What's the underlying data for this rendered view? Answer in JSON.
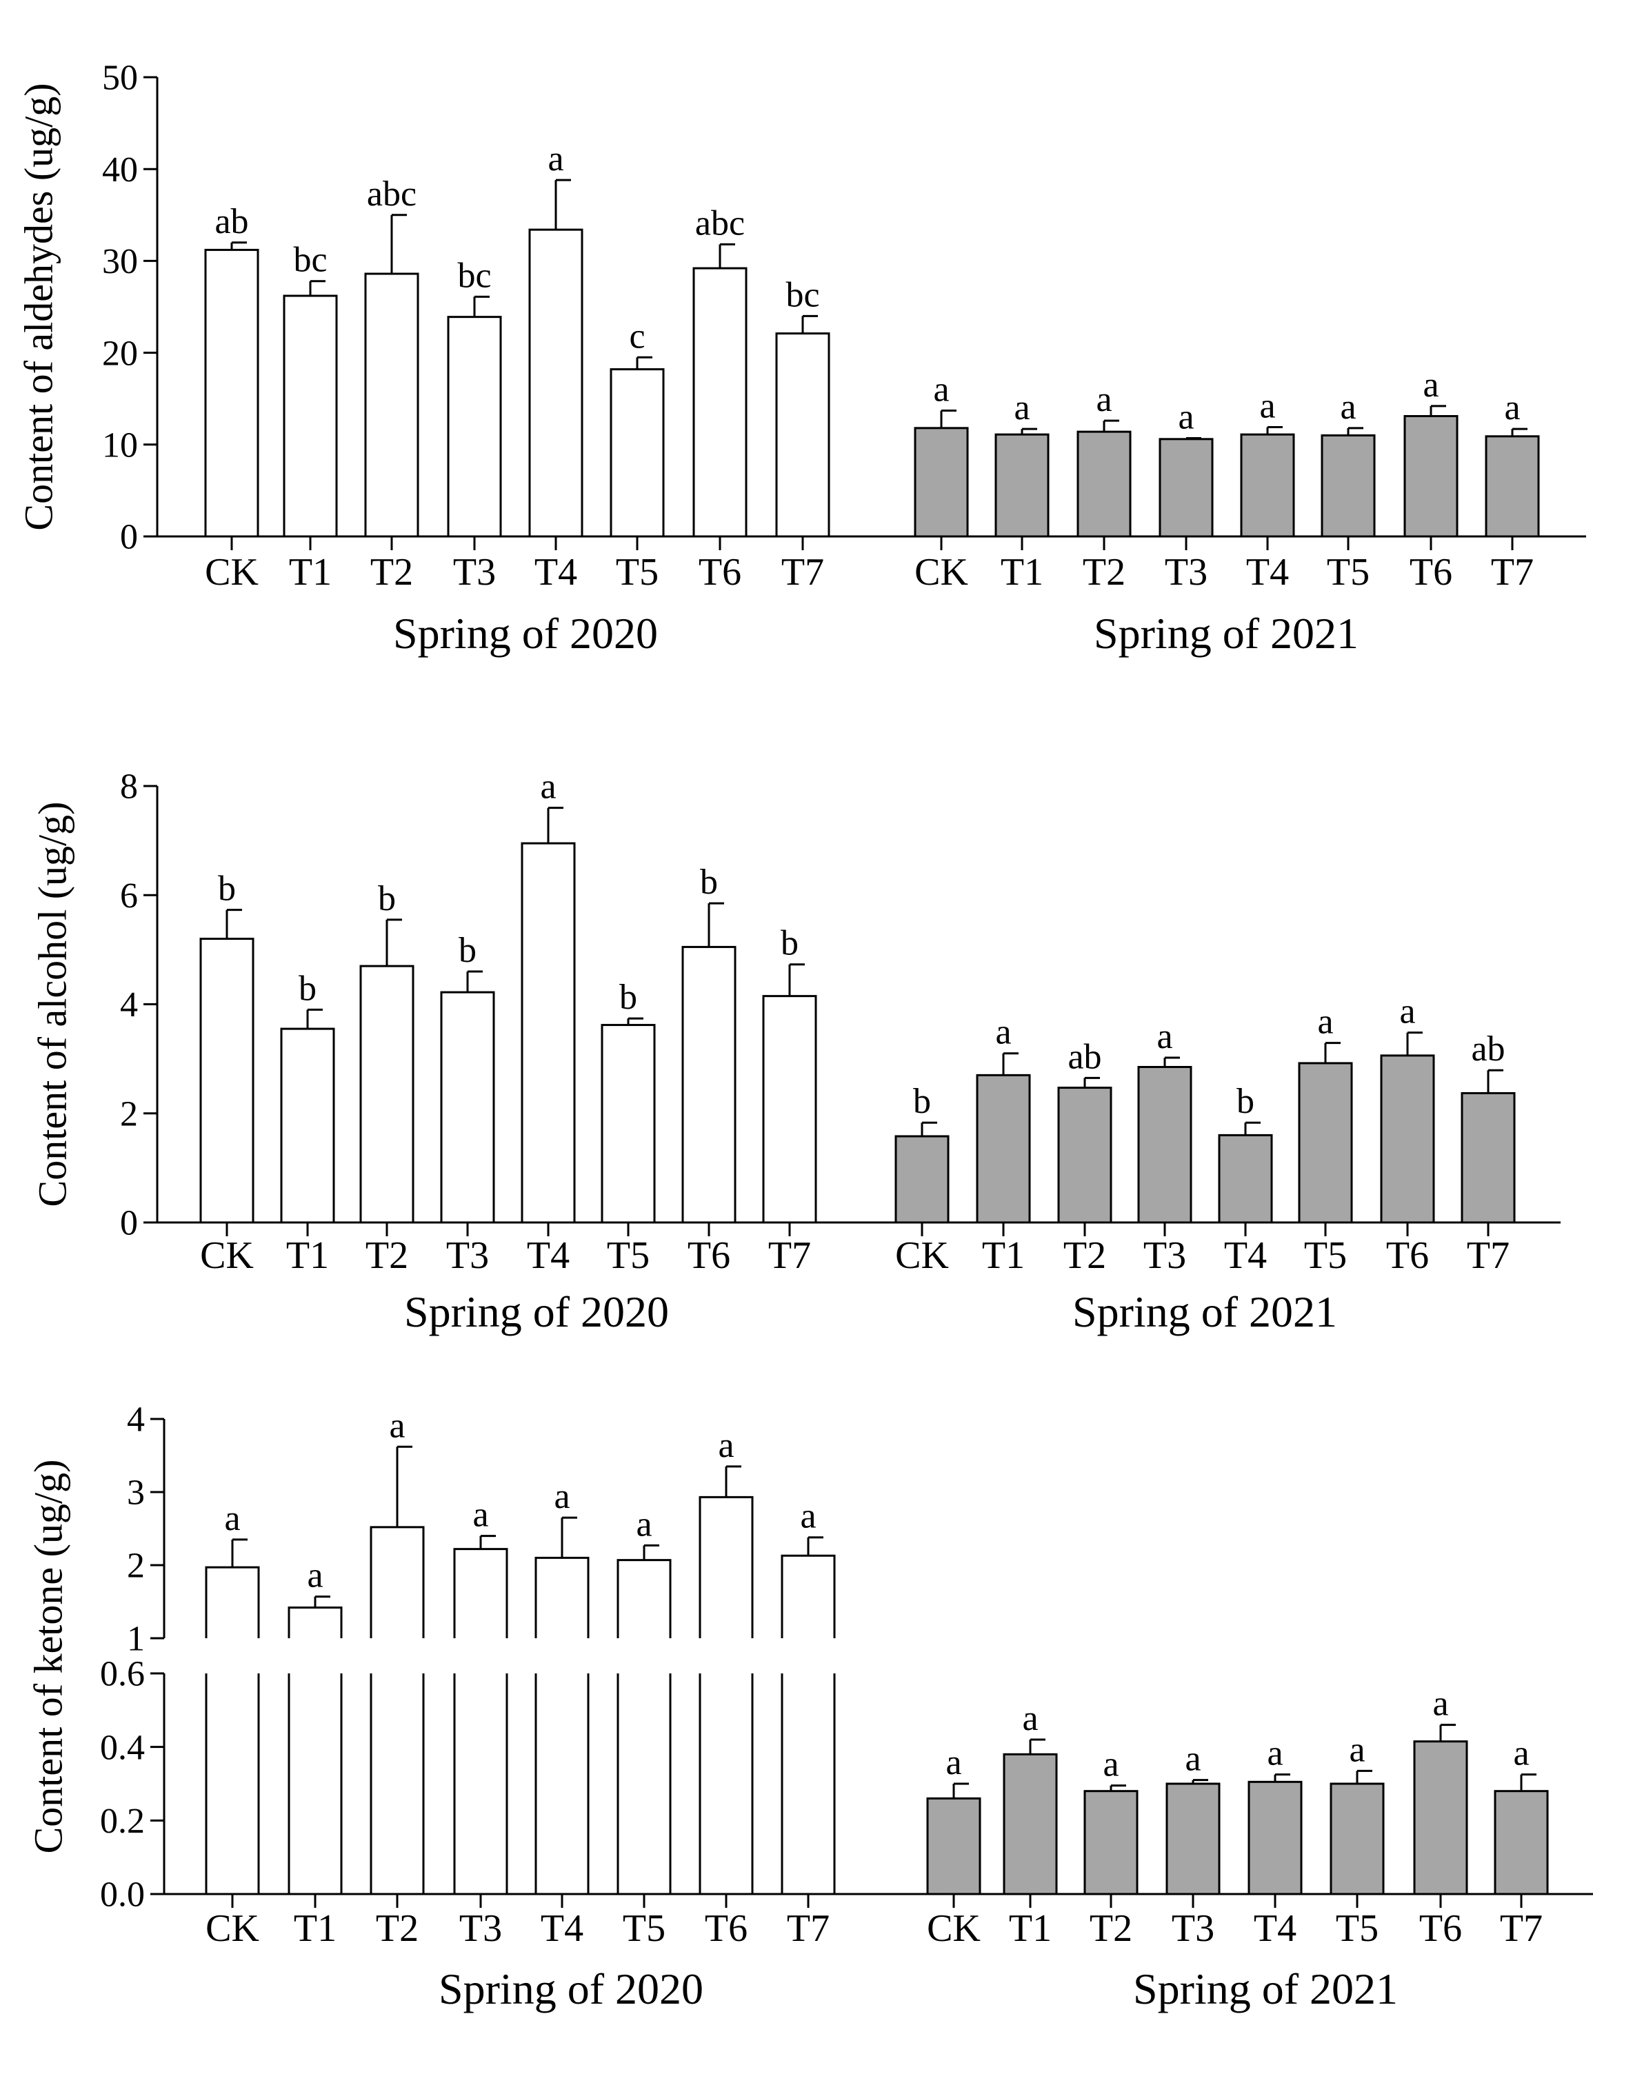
{
  "colors": {
    "spring_2020": "#ffffff",
    "spring_2021": "#a6a6a6",
    "axis": "#000000"
  },
  "chart_data": [
    {
      "type": "bar",
      "ylabel": "Content of aldehydes (ug/g)",
      "ylim": [
        0,
        50
      ],
      "yticks": [
        "0",
        "10",
        "20",
        "30",
        "40",
        "50"
      ],
      "groups": [
        {
          "name": "Spring of 2020",
          "categories": [
            "CK",
            "T1",
            "T2",
            "T3",
            "T4",
            "T5",
            "T6",
            "T7"
          ],
          "values": [
            31.2,
            26.2,
            28.6,
            23.9,
            33.4,
            18.2,
            29.2,
            22.1
          ],
          "errors": [
            0.8,
            1.6,
            6.4,
            2.2,
            5.4,
            1.3,
            2.6,
            1.9
          ],
          "letters": [
            "ab",
            "bc",
            "abc",
            "bc",
            "a",
            "c",
            "abc",
            "bc"
          ]
        },
        {
          "name": "Spring of 2021",
          "categories": [
            "CK",
            "T1",
            "T2",
            "T3",
            "T4",
            "T5",
            "T6",
            "T7"
          ],
          "values": [
            11.8,
            11.1,
            11.4,
            10.6,
            11.1,
            11.0,
            13.1,
            10.9
          ],
          "errors": [
            1.9,
            0.6,
            1.2,
            0.1,
            0.8,
            0.8,
            1.1,
            0.8
          ],
          "letters": [
            "a",
            "a",
            "a",
            "a",
            "a",
            "a",
            "a",
            "a"
          ]
        }
      ]
    },
    {
      "type": "bar",
      "ylabel": "Content of alcohol (ug/g)",
      "ylim": [
        0,
        8
      ],
      "yticks": [
        "0",
        "2",
        "4",
        "6",
        "8"
      ],
      "groups": [
        {
          "name": "Spring of 2020",
          "categories": [
            "CK",
            "T1",
            "T2",
            "T3",
            "T4",
            "T5",
            "T6",
            "T7"
          ],
          "values": [
            5.2,
            3.55,
            4.7,
            4.22,
            6.95,
            3.62,
            5.05,
            4.15
          ],
          "errors": [
            0.53,
            0.35,
            0.85,
            0.38,
            0.65,
            0.12,
            0.8,
            0.58
          ],
          "letters": [
            "b",
            "b",
            "b",
            "b",
            "a",
            "b",
            "b",
            "b"
          ]
        },
        {
          "name": "Spring of 2021",
          "categories": [
            "CK",
            "T1",
            "T2",
            "T3",
            "T4",
            "T5",
            "T6",
            "T7"
          ],
          "values": [
            1.58,
            2.7,
            2.47,
            2.85,
            1.6,
            2.92,
            3.06,
            2.37
          ],
          "errors": [
            0.25,
            0.4,
            0.18,
            0.17,
            0.23,
            0.37,
            0.42,
            0.42
          ],
          "letters": [
            "b",
            "a",
            "ab",
            "a",
            "b",
            "a",
            "a",
            "ab"
          ]
        }
      ]
    },
    {
      "type": "bar",
      "ylabel": "Content of ketone (ug/g)",
      "ylim": [
        0,
        4
      ],
      "axis_break": [
        0.6,
        1
      ],
      "yticks_upper": [
        "1",
        "2",
        "3",
        "4"
      ],
      "yticks_lower": [
        "0.0",
        "0.2",
        "0.4",
        "0.6"
      ],
      "groups": [
        {
          "name": "Spring of 2020",
          "categories": [
            "CK",
            "T1",
            "T2",
            "T3",
            "T4",
            "T5",
            "T6",
            "T7"
          ],
          "values": [
            1.97,
            1.42,
            2.52,
            2.22,
            2.1,
            2.07,
            2.93,
            2.13
          ],
          "errors": [
            0.38,
            0.15,
            1.1,
            0.18,
            0.55,
            0.2,
            0.42,
            0.25
          ],
          "letters": [
            "a",
            "a",
            "a",
            "a",
            "a",
            "a",
            "a",
            "a"
          ]
        },
        {
          "name": "Spring of 2021",
          "categories": [
            "CK",
            "T1",
            "T2",
            "T3",
            "T4",
            "T5",
            "T6",
            "T7"
          ],
          "values": [
            0.26,
            0.38,
            0.28,
            0.3,
            0.305,
            0.3,
            0.415,
            0.28
          ],
          "errors": [
            0.04,
            0.04,
            0.015,
            0.01,
            0.02,
            0.035,
            0.045,
            0.045
          ],
          "letters": [
            "a",
            "a",
            "a",
            "a",
            "a",
            "a",
            "a",
            "a"
          ]
        }
      ]
    }
  ]
}
